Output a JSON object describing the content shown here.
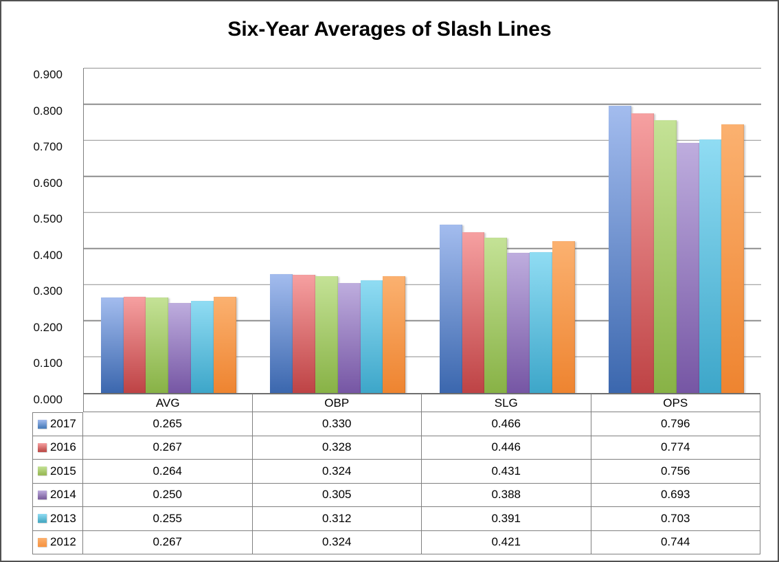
{
  "title": "Six-Year Averages of Slash Lines",
  "chart_data": {
    "type": "bar",
    "title": "Six-Year Averages of Slash Lines",
    "categories": [
      "AVG",
      "OBP",
      "SLG",
      "OPS"
    ],
    "series": [
      {
        "name": "2017",
        "color": "#4F81BD",
        "gradient_top": "#A3BCEE",
        "gradient_bottom": "#3B67AE",
        "values": [
          0.265,
          0.33,
          0.466,
          0.796
        ]
      },
      {
        "name": "2016",
        "color": "#C0504D",
        "gradient_top": "#F6A0A1",
        "gradient_bottom": "#BE4345",
        "values": [
          0.267,
          0.328,
          0.446,
          0.774
        ]
      },
      {
        "name": "2015",
        "color": "#9BBB59",
        "gradient_top": "#C4E296",
        "gradient_bottom": "#88B246",
        "values": [
          0.264,
          0.324,
          0.431,
          0.756
        ]
      },
      {
        "name": "2014",
        "color": "#8064A2",
        "gradient_top": "#BEADDE",
        "gradient_bottom": "#7656A4",
        "values": [
          0.25,
          0.305,
          0.388,
          0.693
        ]
      },
      {
        "name": "2013",
        "color": "#4BACC6",
        "gradient_top": "#90DCF3",
        "gradient_bottom": "#3DA6C9",
        "values": [
          0.255,
          0.312,
          0.391,
          0.703
        ]
      },
      {
        "name": "2012",
        "color": "#F79646",
        "gradient_top": "#FBB170",
        "gradient_bottom": "#EE8430",
        "values": [
          0.267,
          0.324,
          0.421,
          0.744
        ]
      }
    ],
    "ylim": [
      0.0,
      0.9
    ],
    "ytick_step": 0.1,
    "ytick_labels": [
      "0.000",
      "0.100",
      "0.200",
      "0.300",
      "0.400",
      "0.500",
      "0.600",
      "0.700",
      "0.800",
      "0.900"
    ],
    "xlabel": "",
    "ylabel": "",
    "grid": "horizontal",
    "legend_position": "table-left",
    "value_decimals": 3
  },
  "colors": {
    "gridline": "#8d8d8d",
    "axis": "#7f7f7f",
    "table_border": "#7f7f7f",
    "background": "#ffffff",
    "text": "#000000"
  }
}
